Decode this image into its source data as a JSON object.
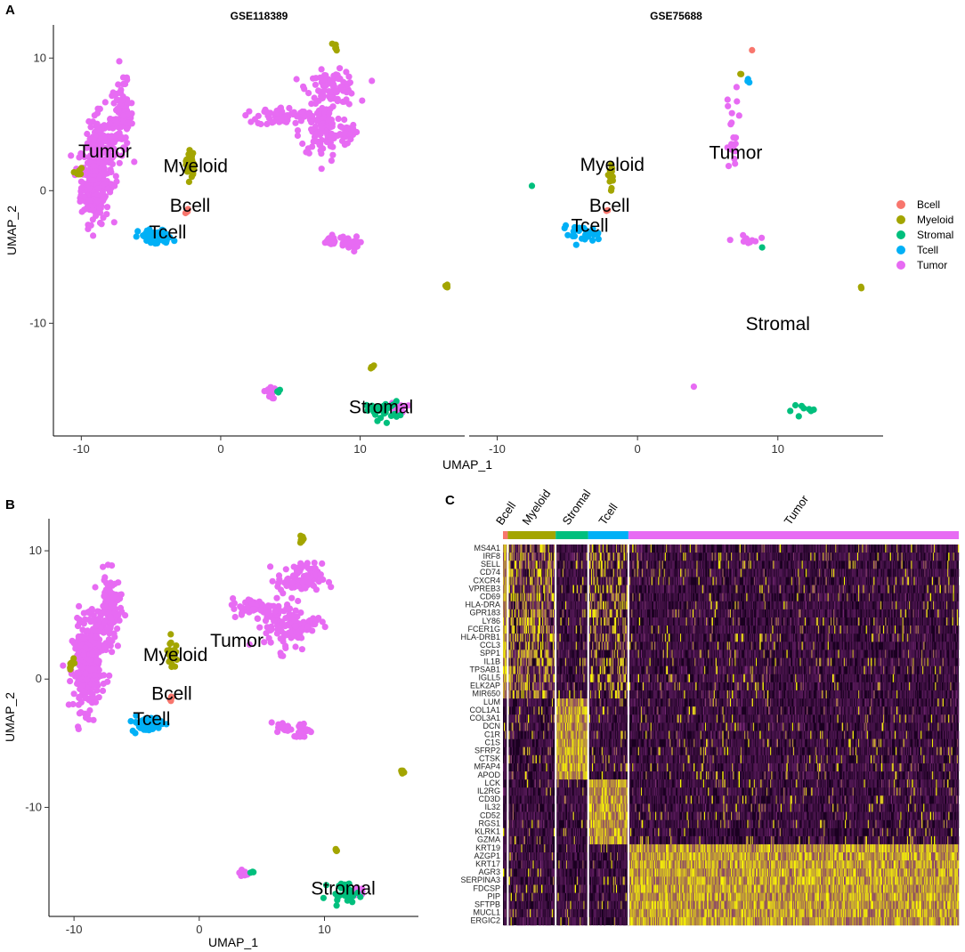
{
  "panels": {
    "A": "A",
    "B": "B",
    "C": "C"
  },
  "colors": {
    "Bcell": "#F8766D",
    "Myeloid": "#A3A500",
    "Stromal": "#00BF7D",
    "Tcell": "#00B0F6",
    "Tumor": "#E76BF3",
    "heat_low": "#1a0020",
    "heat_mid": "#7a2a7a",
    "heat_high": "#ffff00"
  },
  "legend": {
    "items": [
      "Bcell",
      "Myeloid",
      "Stromal",
      "Tcell",
      "Tumor"
    ]
  },
  "chart_data": [
    {
      "id": "A-left",
      "type": "scatter",
      "title": "GSE118389",
      "xlabel": "UMAP_1",
      "ylabel": "UMAP_2",
      "xlim": [
        -12,
        17.5
      ],
      "ylim": [
        -18.5,
        12.5
      ],
      "xticks": [
        -10,
        0,
        10
      ],
      "yticks": [
        10,
        0,
        -10
      ],
      "cluster_labels": [
        {
          "text": "Tumor",
          "x": -8.3,
          "y": 2.5
        },
        {
          "text": "Myeloid",
          "x": -1.8,
          "y": 1.4
        },
        {
          "text": "Bcell",
          "x": -2.2,
          "y": -1.6
        },
        {
          "text": "Tcell",
          "x": -3.8,
          "y": -3.6
        },
        {
          "text": "Stromal",
          "x": 11.5,
          "y": -16.8
        }
      ],
      "clusters": [
        {
          "type": "Tumor",
          "cx": -9.0,
          "cy": 0.8,
          "sx": 0.5,
          "sy": 1.6,
          "n": 260
        },
        {
          "type": "Tumor",
          "cx": -7.1,
          "cy": 5.5,
          "sx": 0.4,
          "sy": 1.3,
          "n": 110
        },
        {
          "type": "Tumor",
          "cx": -8.5,
          "cy": 3.0,
          "sx": 0.7,
          "sy": 1.5,
          "n": 90
        },
        {
          "type": "Tumor",
          "cx": 8.0,
          "cy": 7.8,
          "sx": 0.9,
          "sy": 0.6,
          "n": 90
        },
        {
          "type": "Tumor",
          "cx": 7.4,
          "cy": 4.5,
          "sx": 0.9,
          "sy": 1.0,
          "n": 110
        },
        {
          "type": "Tumor",
          "cx": 4.4,
          "cy": 5.6,
          "sx": 0.9,
          "sy": 0.35,
          "n": 60
        },
        {
          "type": "Tumor",
          "cx": 9.2,
          "cy": 4.5,
          "sx": 0.3,
          "sy": 0.2,
          "n": 15
        },
        {
          "type": "Tumor",
          "cx": 7.8,
          "cy": -3.8,
          "sx": 0.3,
          "sy": 0.2,
          "n": 20
        },
        {
          "type": "Tumor",
          "cx": 9.1,
          "cy": -4.0,
          "sx": 0.4,
          "sy": 0.3,
          "n": 25
        },
        {
          "type": "Tumor",
          "cx": 3.5,
          "cy": -15.2,
          "sx": 0.2,
          "sy": 0.25,
          "n": 10
        },
        {
          "type": "Tumor",
          "cx": 12.8,
          "cy": -16.4,
          "sx": 0.3,
          "sy": 0.2,
          "n": 12
        },
        {
          "type": "Myeloid",
          "cx": -2.2,
          "cy": 2.0,
          "sx": 0.15,
          "sy": 0.6,
          "n": 30
        },
        {
          "type": "Myeloid",
          "cx": -10.2,
          "cy": 1.3,
          "sx": 0.15,
          "sy": 0.2,
          "n": 8
        },
        {
          "type": "Myeloid",
          "cx": 8.2,
          "cy": 10.8,
          "sx": 0.1,
          "sy": 0.2,
          "n": 6
        },
        {
          "type": "Myeloid",
          "cx": 16.2,
          "cy": -7.2,
          "sx": 0.1,
          "sy": 0.1,
          "n": 6
        },
        {
          "type": "Myeloid",
          "cx": 10.9,
          "cy": -13.4,
          "sx": 0.1,
          "sy": 0.1,
          "n": 4
        },
        {
          "type": "Tcell",
          "cx": -4.7,
          "cy": -3.5,
          "sx": 0.6,
          "sy": 0.3,
          "n": 60
        },
        {
          "type": "Bcell",
          "cx": -2.3,
          "cy": -1.5,
          "sx": 0.1,
          "sy": 0.15,
          "n": 4
        },
        {
          "type": "Stromal",
          "cx": 11.6,
          "cy": -16.6,
          "sx": 0.6,
          "sy": 0.35,
          "n": 28
        },
        {
          "type": "Stromal",
          "cx": 4.2,
          "cy": -15.0,
          "sx": 0.1,
          "sy": 0.1,
          "n": 3
        }
      ]
    },
    {
      "id": "A-right",
      "type": "scatter",
      "title": "GSE75688",
      "xlabel": "",
      "ylabel": "",
      "xlim": [
        -12,
        17.5
      ],
      "ylim": [
        -18.5,
        12.5
      ],
      "xticks": [
        -10,
        0,
        10
      ],
      "yticks": [],
      "cluster_labels": [
        {
          "text": "Myeloid",
          "x": -1.8,
          "y": 1.5
        },
        {
          "text": "Tumor",
          "x": 7.0,
          "y": 2.4
        },
        {
          "text": "Bcell",
          "x": -2.0,
          "y": -1.6
        },
        {
          "text": "Tcell",
          "x": -3.4,
          "y": -3.1
        },
        {
          "text": "Stromal",
          "x": 10.0,
          "y": -10.5
        }
      ],
      "clusters": [
        {
          "type": "Tumor",
          "cx": 6.8,
          "cy": 3.0,
          "sx": 0.2,
          "sy": 0.6,
          "n": 12
        },
        {
          "type": "Tumor",
          "cx": 6.6,
          "cy": 6.5,
          "sx": 0.3,
          "sy": 0.8,
          "n": 8
        },
        {
          "type": "Tumor",
          "cx": 7.8,
          "cy": -3.8,
          "sx": 0.4,
          "sy": 0.2,
          "n": 12
        },
        {
          "type": "Tumor",
          "cx": 4.0,
          "cy": -14.8,
          "sx": 0.05,
          "sy": 0.05,
          "n": 1
        },
        {
          "type": "Myeloid",
          "cx": -1.9,
          "cy": 1.2,
          "sx": 0.15,
          "sy": 0.5,
          "n": 18
        },
        {
          "type": "Myeloid",
          "cx": 16.0,
          "cy": -7.2,
          "sx": 0.1,
          "sy": 0.05,
          "n": 2
        },
        {
          "type": "Myeloid",
          "cx": 7.5,
          "cy": 8.8,
          "sx": 0.1,
          "sy": 0.1,
          "n": 2
        },
        {
          "type": "Tcell",
          "cx": -4.0,
          "cy": -3.3,
          "sx": 0.7,
          "sy": 0.3,
          "n": 30
        },
        {
          "type": "Tcell",
          "cx": 7.9,
          "cy": 8.3,
          "sx": 0.1,
          "sy": 0.3,
          "n": 3
        },
        {
          "type": "Bcell",
          "cx": -2.1,
          "cy": -1.5,
          "sx": 0.05,
          "sy": 0.05,
          "n": 2
        },
        {
          "type": "Bcell",
          "cx": 8.2,
          "cy": 10.6,
          "sx": 0.05,
          "sy": 0.05,
          "n": 1
        },
        {
          "type": "Stromal",
          "cx": 12.2,
          "cy": -16.6,
          "sx": 0.8,
          "sy": 0.3,
          "n": 8
        },
        {
          "type": "Stromal",
          "cx": -7.5,
          "cy": 0.3,
          "sx": 0.05,
          "sy": 0.05,
          "n": 1
        },
        {
          "type": "Stromal",
          "cx": 8.9,
          "cy": -4.2,
          "sx": 0.05,
          "sy": 0.05,
          "n": 1
        }
      ]
    },
    {
      "id": "B",
      "type": "scatter",
      "title": "",
      "xlabel": "UMAP_1",
      "ylabel": "UMAP_2",
      "xlim": [
        -12,
        17.5
      ],
      "ylim": [
        -18.5,
        12.5
      ],
      "xticks": [
        -10,
        0,
        10
      ],
      "yticks": [
        10,
        0,
        -10
      ],
      "cluster_labels": [
        {
          "text": "Tumor",
          "x": 3.0,
          "y": 2.5
        },
        {
          "text": "Myeloid",
          "x": -1.9,
          "y": 1.4
        },
        {
          "text": "Bcell",
          "x": -2.2,
          "y": -1.6
        },
        {
          "text": "Tcell",
          "x": -3.8,
          "y": -3.6
        },
        {
          "text": "Stromal",
          "x": 11.5,
          "y": -16.8
        }
      ],
      "clusters": [
        {
          "type": "Tumor",
          "cx": -9.0,
          "cy": 0.8,
          "sx": 0.5,
          "sy": 1.6,
          "n": 260
        },
        {
          "type": "Tumor",
          "cx": -7.1,
          "cy": 5.5,
          "sx": 0.4,
          "sy": 1.3,
          "n": 110
        },
        {
          "type": "Tumor",
          "cx": -8.5,
          "cy": 3.0,
          "sx": 0.7,
          "sy": 1.5,
          "n": 90
        },
        {
          "type": "Tumor",
          "cx": 8.0,
          "cy": 7.8,
          "sx": 0.9,
          "sy": 0.6,
          "n": 90
        },
        {
          "type": "Tumor",
          "cx": 7.0,
          "cy": 4.2,
          "sx": 0.9,
          "sy": 1.0,
          "n": 110
        },
        {
          "type": "Tumor",
          "cx": 4.4,
          "cy": 5.6,
          "sx": 0.9,
          "sy": 0.35,
          "n": 60
        },
        {
          "type": "Tumor",
          "cx": 9.2,
          "cy": 4.5,
          "sx": 0.3,
          "sy": 0.2,
          "n": 15
        },
        {
          "type": "Tumor",
          "cx": 6.8,
          "cy": -3.8,
          "sx": 0.3,
          "sy": 0.2,
          "n": 20
        },
        {
          "type": "Tumor",
          "cx": 8.3,
          "cy": -4.0,
          "sx": 0.4,
          "sy": 0.3,
          "n": 25
        },
        {
          "type": "Tumor",
          "cx": 3.5,
          "cy": -15.2,
          "sx": 0.2,
          "sy": 0.25,
          "n": 10
        },
        {
          "type": "Tumor",
          "cx": 12.8,
          "cy": -16.4,
          "sx": 0.3,
          "sy": 0.2,
          "n": 12
        },
        {
          "type": "Myeloid",
          "cx": -2.2,
          "cy": 2.0,
          "sx": 0.15,
          "sy": 0.6,
          "n": 30
        },
        {
          "type": "Myeloid",
          "cx": -10.2,
          "cy": 1.3,
          "sx": 0.15,
          "sy": 0.2,
          "n": 8
        },
        {
          "type": "Myeloid",
          "cx": 8.2,
          "cy": 10.8,
          "sx": 0.1,
          "sy": 0.2,
          "n": 6
        },
        {
          "type": "Myeloid",
          "cx": 16.2,
          "cy": -7.2,
          "sx": 0.1,
          "sy": 0.1,
          "n": 6
        },
        {
          "type": "Myeloid",
          "cx": 10.9,
          "cy": -13.4,
          "sx": 0.1,
          "sy": 0.1,
          "n": 4
        },
        {
          "type": "Tcell",
          "cx": -4.2,
          "cy": -3.5,
          "sx": 0.6,
          "sy": 0.3,
          "n": 60
        },
        {
          "type": "Bcell",
          "cx": -2.3,
          "cy": -1.5,
          "sx": 0.1,
          "sy": 0.15,
          "n": 4
        },
        {
          "type": "Stromal",
          "cx": 11.6,
          "cy": -16.6,
          "sx": 0.6,
          "sy": 0.35,
          "n": 28
        },
        {
          "type": "Stromal",
          "cx": 4.2,
          "cy": -15.0,
          "sx": 0.1,
          "sy": 0.1,
          "n": 3
        }
      ]
    },
    {
      "id": "C",
      "type": "heatmap",
      "title": "",
      "groups": [
        {
          "name": "Bcell",
          "cells": 5
        },
        {
          "name": "Myeloid",
          "cells": 50
        },
        {
          "name": "Stromal",
          "cells": 34
        },
        {
          "name": "Tcell",
          "cells": 42
        },
        {
          "name": "Tumor",
          "cells": 345
        }
      ],
      "genes": [
        "MS4A1",
        "IRF8",
        "SELL",
        "CD74",
        "CXCR4",
        "VPREB3",
        "CD69",
        "HLA-DRA",
        "GPR183",
        "LY86",
        "FCER1G",
        "HLA-DRB1",
        "CCL3",
        "SPP1",
        "IL1B",
        "TPSAB1",
        "IGLL5",
        "ELK2AP",
        "MIR650",
        "LUM",
        "COL1A1",
        "COL3A1",
        "DCN",
        "C1R",
        "C1S",
        "SFRP2",
        "CTSK",
        "MFAP4",
        "APOD",
        "LCK",
        "IL2RG",
        "CD3D",
        "IL32",
        "CD52",
        "RGS1",
        "KLRK1",
        "GZMA",
        "KRT19",
        "AZGP1",
        "KRT17",
        "AGR3",
        "SERPINA3",
        "FDCSP",
        "PIP",
        "SFTPB",
        "MUCL1",
        "ERGIC2"
      ],
      "marker_blocks": [
        {
          "group": "Bcell",
          "genes": [
            "MS4A1",
            "IRF8",
            "SELL",
            "CD74",
            "CXCR4",
            "VPREB3",
            "CD69",
            "HLA-DRA",
            "GPR183",
            "LY86",
            "FCER1G",
            "HLA-DRB1",
            "CCL3",
            "SPP1",
            "IL1B",
            "TPSAB1",
            "IGLL5",
            "ELK2AP",
            "MIR650"
          ]
        },
        {
          "group": "Stromal",
          "genes": [
            "LUM",
            "COL1A1",
            "COL3A1",
            "DCN",
            "C1R",
            "C1S",
            "SFRP2",
            "CTSK",
            "MFAP4",
            "APOD"
          ]
        },
        {
          "group": "Tcell",
          "genes": [
            "LCK",
            "IL2RG",
            "CD3D",
            "IL32",
            "CD52",
            "RGS1",
            "KLRK1",
            "GZMA"
          ]
        },
        {
          "group": "Tumor",
          "genes": [
            "KRT19",
            "AZGP1",
            "KRT17",
            "AGR3",
            "SERPINA3",
            "FDCSP",
            "PIP",
            "SFTPB",
            "MUCL1",
            "ERGIC2"
          ]
        }
      ],
      "color_scale": [
        "low (dark purple)",
        "mid (magenta)",
        "high (yellow)"
      ]
    }
  ]
}
